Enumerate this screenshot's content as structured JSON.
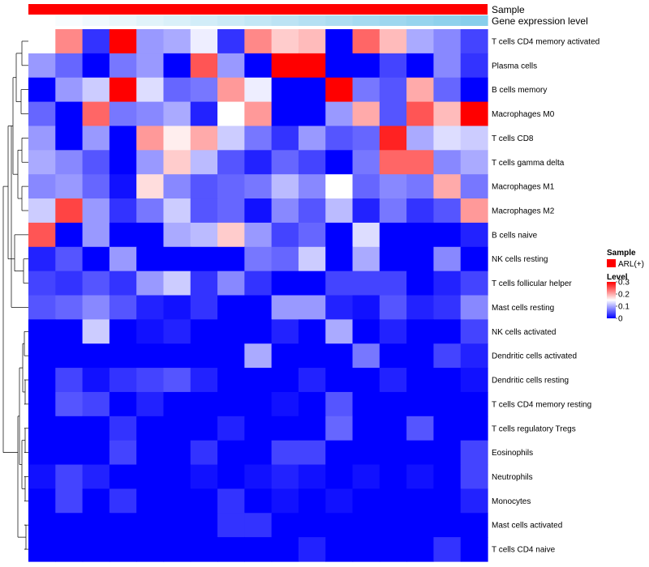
{
  "chart_data": {
    "type": "heatmap",
    "annotations": [
      {
        "name": "Sample",
        "label": "Sample",
        "kind": "single",
        "color": "#ff0000"
      },
      {
        "name": "Gene expression level",
        "label": "Gene expression level",
        "kind": "gradient",
        "from": "#ffffff",
        "to": "#87ceeb"
      }
    ],
    "rows": [
      "T cells CD4 memory activated",
      "Plasma cells",
      "B cells memory",
      "Macrophages M0",
      "T cells CD8",
      "T cells gamma delta",
      "Macrophages M1",
      "Macrophages M2",
      "B cells naive",
      "NK cells resting",
      "T cells follicular helper",
      "Mast cells resting",
      "NK cells activated",
      "Dendritic cells activated",
      "Dendritic cells resting",
      "T cells CD4 memory resting",
      "T cells regulatory  Tregs",
      "Eosinophils",
      "Neutrophils",
      "Monocytes",
      "Mast cells activated",
      "T cells CD4 naive"
    ],
    "n_columns": 17,
    "values": [
      [
        0.15,
        0.22,
        0.03,
        0.3,
        0.09,
        0.1,
        0.14,
        0.03,
        0.22,
        0.18,
        0.19,
        0.0,
        0.24,
        0.19,
        0.1,
        0.08,
        0.04
      ],
      [
        0.09,
        0.06,
        0.0,
        0.07,
        0.09,
        0.0,
        0.25,
        0.09,
        0.0,
        0.3,
        0.3,
        0.0,
        0.0,
        0.04,
        0.0,
        0.08,
        0.03
      ],
      [
        0.0,
        0.09,
        0.12,
        0.3,
        0.13,
        0.06,
        0.07,
        0.21,
        0.14,
        0.0,
        0.0,
        0.3,
        0.07,
        0.05,
        0.2,
        0.06,
        0.0
      ],
      [
        0.06,
        0.0,
        0.24,
        0.07,
        0.08,
        0.1,
        0.02,
        0.15,
        0.21,
        0.0,
        0.0,
        0.09,
        0.2,
        0.05,
        0.25,
        0.19,
        0.3
      ],
      [
        0.09,
        0.0,
        0.09,
        0.0,
        0.21,
        0.16,
        0.2,
        0.12,
        0.07,
        0.03,
        0.09,
        0.05,
        0.06,
        0.28,
        0.1,
        0.13,
        0.12
      ],
      [
        0.1,
        0.08,
        0.05,
        0.0,
        0.09,
        0.18,
        0.11,
        0.05,
        0.02,
        0.06,
        0.04,
        0.0,
        0.07,
        0.24,
        0.24,
        0.08,
        0.1
      ],
      [
        0.08,
        0.09,
        0.06,
        0.01,
        0.17,
        0.08,
        0.05,
        0.06,
        0.07,
        0.11,
        0.08,
        0.15,
        0.06,
        0.08,
        0.07,
        0.2,
        0.07
      ],
      [
        0.12,
        0.26,
        0.09,
        0.03,
        0.07,
        0.12,
        0.05,
        0.06,
        0.01,
        0.08,
        0.05,
        0.11,
        0.02,
        0.07,
        0.03,
        0.05,
        0.21
      ],
      [
        0.25,
        0.0,
        0.09,
        0.0,
        0.0,
        0.1,
        0.11,
        0.18,
        0.09,
        0.04,
        0.06,
        0.0,
        0.13,
        0.0,
        0.0,
        0.0,
        0.02
      ],
      [
        0.02,
        0.05,
        0.0,
        0.09,
        0.0,
        0.0,
        0.0,
        0.0,
        0.07,
        0.06,
        0.12,
        0.0,
        0.1,
        0.0,
        0.0,
        0.08,
        0.0
      ],
      [
        0.04,
        0.03,
        0.05,
        0.03,
        0.09,
        0.12,
        0.03,
        0.08,
        0.03,
        0.0,
        0.0,
        0.04,
        0.04,
        0.04,
        0.0,
        0.02,
        0.04
      ],
      [
        0.05,
        0.06,
        0.08,
        0.05,
        0.02,
        0.01,
        0.03,
        0.0,
        0.0,
        0.09,
        0.09,
        0.02,
        0.01,
        0.05,
        0.02,
        0.03,
        0.08
      ],
      [
        0.0,
        0.0,
        0.12,
        0.0,
        0.01,
        0.02,
        0.0,
        0.0,
        0.0,
        0.02,
        0.0,
        0.1,
        0.0,
        0.02,
        0.0,
        0.0,
        0.04
      ],
      [
        0.0,
        0.0,
        0.0,
        0.0,
        0.0,
        0.0,
        0.0,
        0.0,
        0.1,
        0.0,
        0.0,
        0.0,
        0.07,
        0.0,
        0.0,
        0.04,
        0.02
      ],
      [
        0.0,
        0.04,
        0.01,
        0.03,
        0.04,
        0.05,
        0.02,
        0.0,
        0.0,
        0.0,
        0.02,
        0.0,
        0.0,
        0.02,
        0.0,
        0.0,
        0.01
      ],
      [
        0.0,
        0.05,
        0.04,
        0.0,
        0.02,
        0.0,
        0.0,
        0.0,
        0.0,
        0.01,
        0.0,
        0.05,
        0.0,
        0.0,
        0.0,
        0.0,
        0.0
      ],
      [
        0.0,
        0.0,
        0.0,
        0.03,
        0.0,
        0.0,
        0.0,
        0.02,
        0.0,
        0.0,
        0.0,
        0.06,
        0.0,
        0.0,
        0.05,
        0.0,
        0.0
      ],
      [
        0.0,
        0.0,
        0.0,
        0.04,
        0.0,
        0.0,
        0.03,
        0.0,
        0.0,
        0.04,
        0.04,
        0.0,
        0.0,
        0.0,
        0.0,
        0.0,
        0.04
      ],
      [
        0.01,
        0.04,
        0.02,
        0.0,
        0.0,
        0.0,
        0.01,
        0.0,
        0.01,
        0.02,
        0.01,
        0.0,
        0.01,
        0.0,
        0.01,
        0.0,
        0.04
      ],
      [
        0.0,
        0.04,
        0.0,
        0.03,
        0.0,
        0.0,
        0.0,
        0.03,
        0.0,
        0.01,
        0.0,
        0.01,
        0.0,
        0.0,
        0.0,
        0.0,
        0.02
      ],
      [
        0.0,
        0.0,
        0.0,
        0.0,
        0.0,
        0.0,
        0.0,
        0.03,
        0.03,
        0.0,
        0.0,
        0.0,
        0.0,
        0.0,
        0.0,
        0.0,
        0.0
      ],
      [
        0.0,
        0.0,
        0.0,
        0.0,
        0.0,
        0.0,
        0.0,
        0.0,
        0.0,
        0.0,
        0.02,
        0.0,
        0.0,
        0.0,
        0.0,
        0.03,
        0.0
      ]
    ],
    "color_scale": {
      "min": 0,
      "mid": 0.15,
      "max": 0.3,
      "low_color": "#0000ff",
      "mid_color": "#ffffff",
      "high_color": "#ff0000"
    },
    "legend": {
      "sample_title": "Sample",
      "sample_entry": "ARL(+)",
      "sample_color": "#ff0000",
      "level_title": "Level",
      "level_ticks": [
        "0.3",
        "0.2",
        "0.1",
        "0"
      ],
      "level_tick_values": [
        0.3,
        0.2,
        0.1,
        0
      ],
      "placement": "right"
    },
    "dendrogram": "row"
  }
}
